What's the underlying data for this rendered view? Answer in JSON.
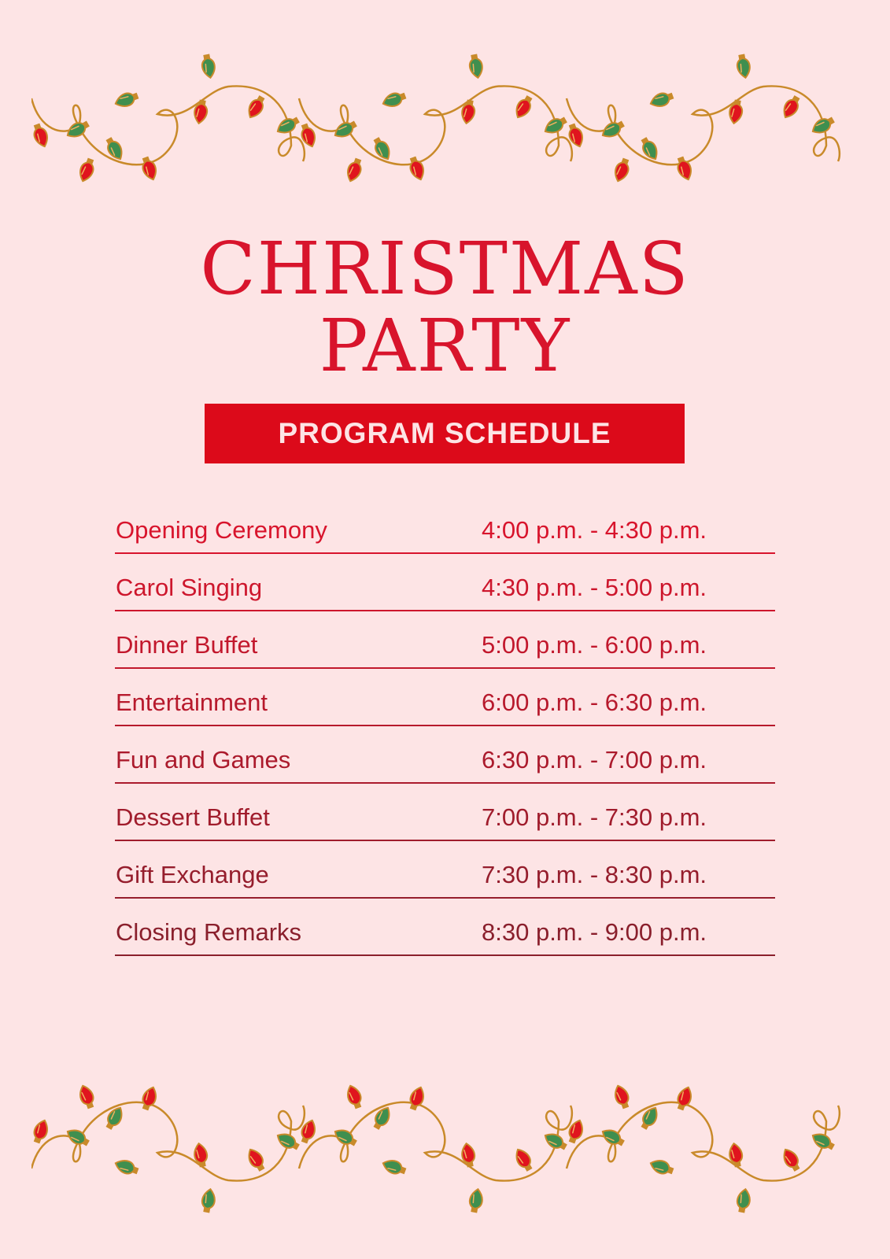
{
  "title": {
    "line1": "CHRISTMAS",
    "line2": "PARTY"
  },
  "subtitle": "PROGRAM SCHEDULE",
  "colors": {
    "background": "#fde4e5",
    "accent": "#dc0a1a",
    "text_start": "#d8142c",
    "text_end": "#8a1f2c",
    "bulb_red": "#e0141e",
    "bulb_green": "#3f8f4f",
    "wire": "#c98a2a"
  },
  "decoration": {
    "top": "christmas-lights-garland-icon",
    "bottom": "christmas-lights-garland-icon"
  },
  "schedule": [
    {
      "event": "Opening Ceremony",
      "time": "4:00 p.m. - 4:30 p.m."
    },
    {
      "event": "Carol Singing",
      "time": "4:30 p.m. - 5:00 p.m."
    },
    {
      "event": "Dinner Buffet",
      "time": "5:00 p.m. - 6:00 p.m."
    },
    {
      "event": "Entertainment",
      "time": "6:00 p.m. - 6:30 p.m."
    },
    {
      "event": "Fun and Games",
      "time": "6:30 p.m. - 7:00 p.m."
    },
    {
      "event": "Dessert Buffet",
      "time": "7:00 p.m. - 7:30 p.m."
    },
    {
      "event": "Gift Exchange",
      "time": "7:30 p.m. - 8:30 p.m."
    },
    {
      "event": "Closing Remarks",
      "time": "8:30 p.m. - 9:00 p.m."
    }
  ]
}
